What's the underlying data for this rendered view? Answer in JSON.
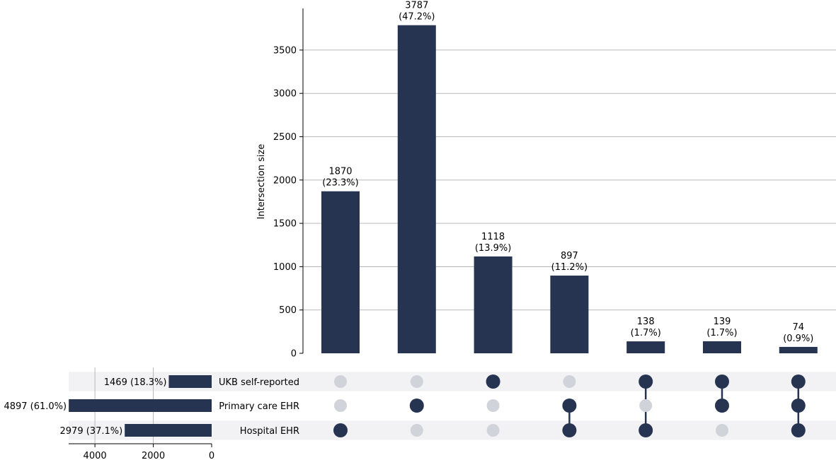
{
  "chart_data": {
    "type": "bar",
    "subtype": "upset",
    "ylabel": "Intersection size",
    "ylim": [
      0,
      3980
    ],
    "yticks": [
      0,
      500,
      1000,
      1500,
      2000,
      2500,
      3000,
      3500
    ],
    "grid": true,
    "colors": {
      "bar": "#273451",
      "dot_inactive": "#d1d3da",
      "stripe": "#f2f2f5",
      "grid": "#b0b0b0"
    },
    "sets": [
      "UKB self-reported",
      "Primary care EHR",
      "Hospital EHR"
    ],
    "set_sizes": [
      {
        "value": 1469,
        "label": "1469 (18.3%)"
      },
      {
        "value": 4897,
        "label": "4897 (61.0%)"
      },
      {
        "value": 2979,
        "label": "2979 (37.1%)"
      }
    ],
    "set_size_xlim": [
      4900,
      0
    ],
    "set_size_ticks": [
      4000,
      2000,
      0
    ],
    "intersections": [
      {
        "value": 1870,
        "count_label": "1870",
        "pct_label": "(23.3%)",
        "membership": [
          false,
          false,
          true
        ]
      },
      {
        "value": 3787,
        "count_label": "3787",
        "pct_label": "(47.2%)",
        "membership": [
          false,
          true,
          false
        ]
      },
      {
        "value": 1118,
        "count_label": "1118",
        "pct_label": "(13.9%)",
        "membership": [
          true,
          false,
          false
        ]
      },
      {
        "value": 897,
        "count_label": "897",
        "pct_label": "(11.2%)",
        "membership": [
          false,
          true,
          true
        ]
      },
      {
        "value": 138,
        "count_label": "138",
        "pct_label": "(1.7%)",
        "membership": [
          true,
          false,
          true
        ]
      },
      {
        "value": 139,
        "count_label": "139",
        "pct_label": "(1.7%)",
        "membership": [
          true,
          true,
          false
        ]
      },
      {
        "value": 74,
        "count_label": "74",
        "pct_label": "(0.9%)",
        "membership": [
          true,
          true,
          true
        ]
      }
    ]
  }
}
